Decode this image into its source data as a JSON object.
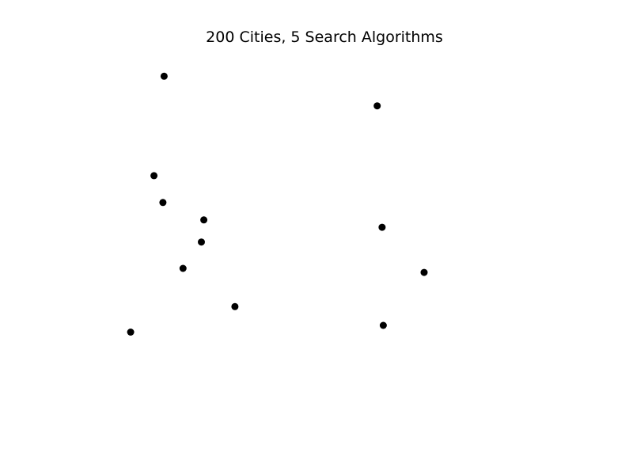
{
  "chart_data": {
    "type": "scatter",
    "title": "200 Cities, 5 Search Algorithms",
    "xlabel": "",
    "ylabel": "",
    "axes_visible": false,
    "grid": false,
    "point_color": "#000000",
    "xlim": [
      0,
      1
    ],
    "ylim": [
      0,
      1
    ],
    "series": [
      {
        "points": [
          {
            "x": 0.1733,
            "y": 0.9467
          },
          {
            "x": 0.6075,
            "y": 0.8646
          },
          {
            "x": 0.1525,
            "y": 0.6713
          },
          {
            "x": 0.1708,
            "y": 0.597
          },
          {
            "x": 0.2542,
            "y": 0.5487
          },
          {
            "x": 0.6175,
            "y": 0.5283
          },
          {
            "x": 0.2492,
            "y": 0.4875
          },
          {
            "x": 0.2117,
            "y": 0.4145
          },
          {
            "x": 0.7033,
            "y": 0.4033
          },
          {
            "x": 0.3175,
            "y": 0.3086
          },
          {
            "x": 0.62,
            "y": 0.2565
          },
          {
            "x": 0.105,
            "y": 0.2379
          }
        ]
      }
    ]
  }
}
